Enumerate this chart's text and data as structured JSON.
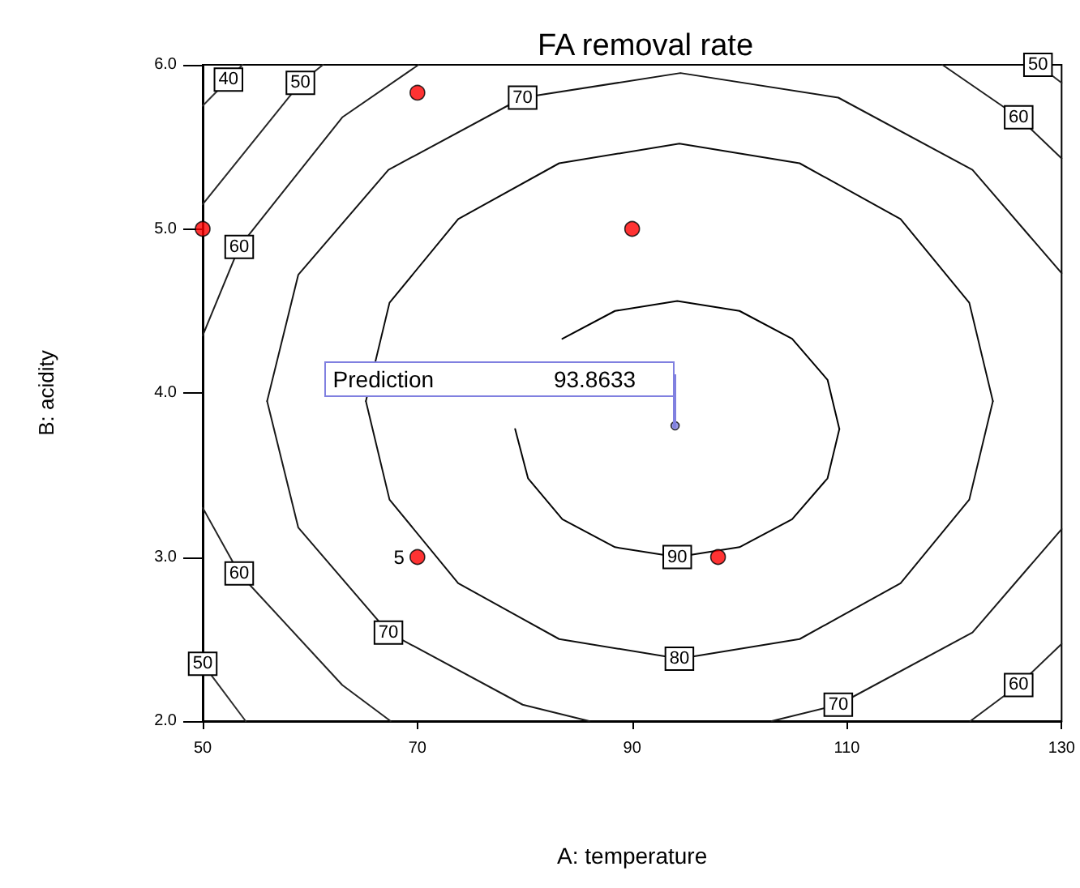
{
  "chart_data": {
    "type": "line",
    "title": "FA removal rate",
    "xlabel": "A: temperature",
    "ylabel": "B: acidity",
    "xlim": [
      50,
      130
    ],
    "xticks": [
      50,
      70,
      90,
      110,
      130
    ],
    "ylim": [
      2,
      6
    ],
    "yticks": [
      {
        "value": 2,
        "label": "2.0"
      },
      {
        "value": 3,
        "label": "3.0"
      },
      {
        "value": 4,
        "label": "4.0"
      },
      {
        "value": 5,
        "label": "5.0"
      },
      {
        "value": 6,
        "label": "6.0"
      }
    ],
    "grid": false,
    "legend": false,
    "line_style": "solid",
    "series": [
      {
        "color": "#000000",
        "x": [
          83.5,
          88.4,
          94.2,
          100.0,
          104.9,
          108.2,
          109.3
        ],
        "values": [
          4.33,
          4.5,
          4.56,
          4.5,
          4.33,
          4.08,
          3.78
        ]
      },
      {
        "name": "90",
        "color": "#050505",
        "x": [
          79.1,
          80.3,
          83.5,
          88.4,
          94.2,
          100.0,
          104.9,
          108.2,
          109.3
        ],
        "values": [
          3.78,
          3.48,
          3.23,
          3.06,
          3.0,
          3.06,
          3.23,
          3.48,
          3.78
        ]
      },
      {
        "color": "#0a0a0a",
        "x": [
          65.2,
          67.4,
          73.8,
          83.2,
          94.4,
          105.6,
          115.0,
          121.4,
          123.6
        ],
        "values": [
          3.95,
          4.55,
          5.06,
          5.4,
          5.52,
          5.4,
          5.06,
          4.55,
          3.95
        ]
      },
      {
        "name": "80",
        "color": "#0f0f0f",
        "x": [
          65.2,
          67.4,
          73.8,
          83.2,
          94.4,
          105.6,
          115.0,
          121.4,
          123.6
        ],
        "values": [
          3.95,
          3.35,
          2.84,
          2.5,
          2.38,
          2.5,
          2.84,
          3.35,
          3.95
        ]
      },
      {
        "name": "70",
        "color": "#141414",
        "x": [
          56.0,
          58.9,
          67.3,
          79.8,
          94.5,
          109.2,
          121.7,
          130
        ],
        "values": [
          3.95,
          4.72,
          5.36,
          5.8,
          5.95,
          5.8,
          5.36,
          4.73
        ]
      },
      {
        "name": "70",
        "color": "#191919",
        "x": [
          56.0,
          58.9,
          67.3,
          79.8,
          86.0,
          null,
          103.0,
          109.2,
          121.7,
          130
        ],
        "values": [
          3.95,
          3.18,
          2.54,
          2.1,
          2.0,
          null,
          2.0,
          2.1,
          2.54,
          3.17
        ]
      },
      {
        "name": "60",
        "color": "#1e1e1e",
        "x": [
          50,
          53.4,
          63.0,
          70.1,
          null,
          118.9,
          126.0,
          130
        ],
        "values": [
          4.35,
          4.89,
          5.68,
          6.0,
          null,
          6.0,
          5.68,
          5.43
        ]
      },
      {
        "name": "60",
        "color": "#232323",
        "x": [
          50,
          53.4,
          63.0,
          67.5,
          null,
          121.5,
          126.0,
          130
        ],
        "values": [
          3.3,
          2.9,
          2.22,
          2.0,
          null,
          2.0,
          2.22,
          2.47
        ]
      },
      {
        "name": "50",
        "color": "#282828",
        "x": [
          50,
          59.1,
          61.2,
          null,
          127.8,
          130
        ],
        "values": [
          5.15,
          5.89,
          6.0,
          null,
          6.0,
          5.89
        ]
      },
      {
        "name": "50",
        "color": "#2d2d2d",
        "x": [
          50,
          54.0
        ],
        "values": [
          2.35,
          2.0
        ]
      },
      {
        "name": "40",
        "color": "#323232",
        "x": [
          50,
          52.4,
          53.7
        ],
        "values": [
          5.75,
          5.91,
          6.0
        ]
      },
      {
        "type": "scatter",
        "color": "#ff0000",
        "marker": "circle",
        "x": [
          70,
          50,
          90,
          70,
          98
        ],
        "values": [
          5.83,
          5.0,
          5.0,
          3.0,
          3.0
        ]
      },
      {
        "type": "scatter",
        "color": "#8080e0",
        "marker": "circle",
        "x": [
          94
        ],
        "values": [
          3.8
        ]
      }
    ],
    "annotations": [
      {
        "text": "5",
        "x": 70,
        "y": 3.0
      },
      {
        "text": "Prediction 93.8633",
        "x": 94,
        "y": 3.8
      }
    ]
  }
}
